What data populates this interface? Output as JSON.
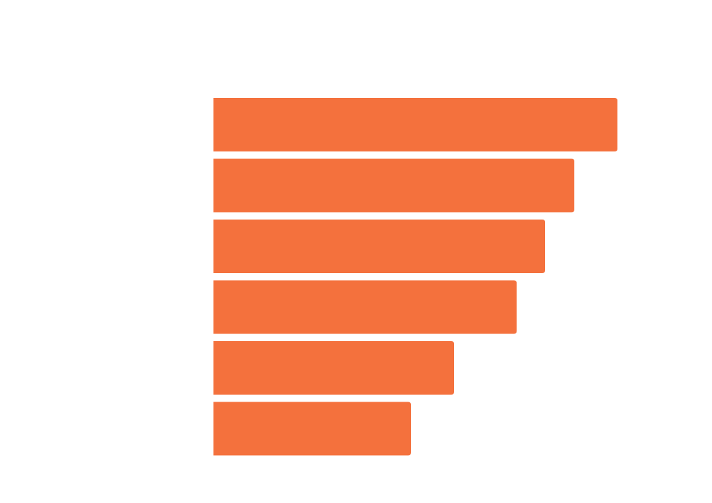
{
  "chart_data": {
    "type": "bar",
    "orientation": "horizontal",
    "categories": [
      "",
      "",
      "",
      "",
      "",
      ""
    ],
    "values": [
      581,
      519,
      477,
      436,
      346,
      284
    ],
    "xlim": [
      0,
      600
    ],
    "grid": false,
    "legend": "none",
    "bar_color": "#F4713D"
  },
  "colors": {
    "background": "#FFFFFF",
    "bar": "#F4713D"
  }
}
